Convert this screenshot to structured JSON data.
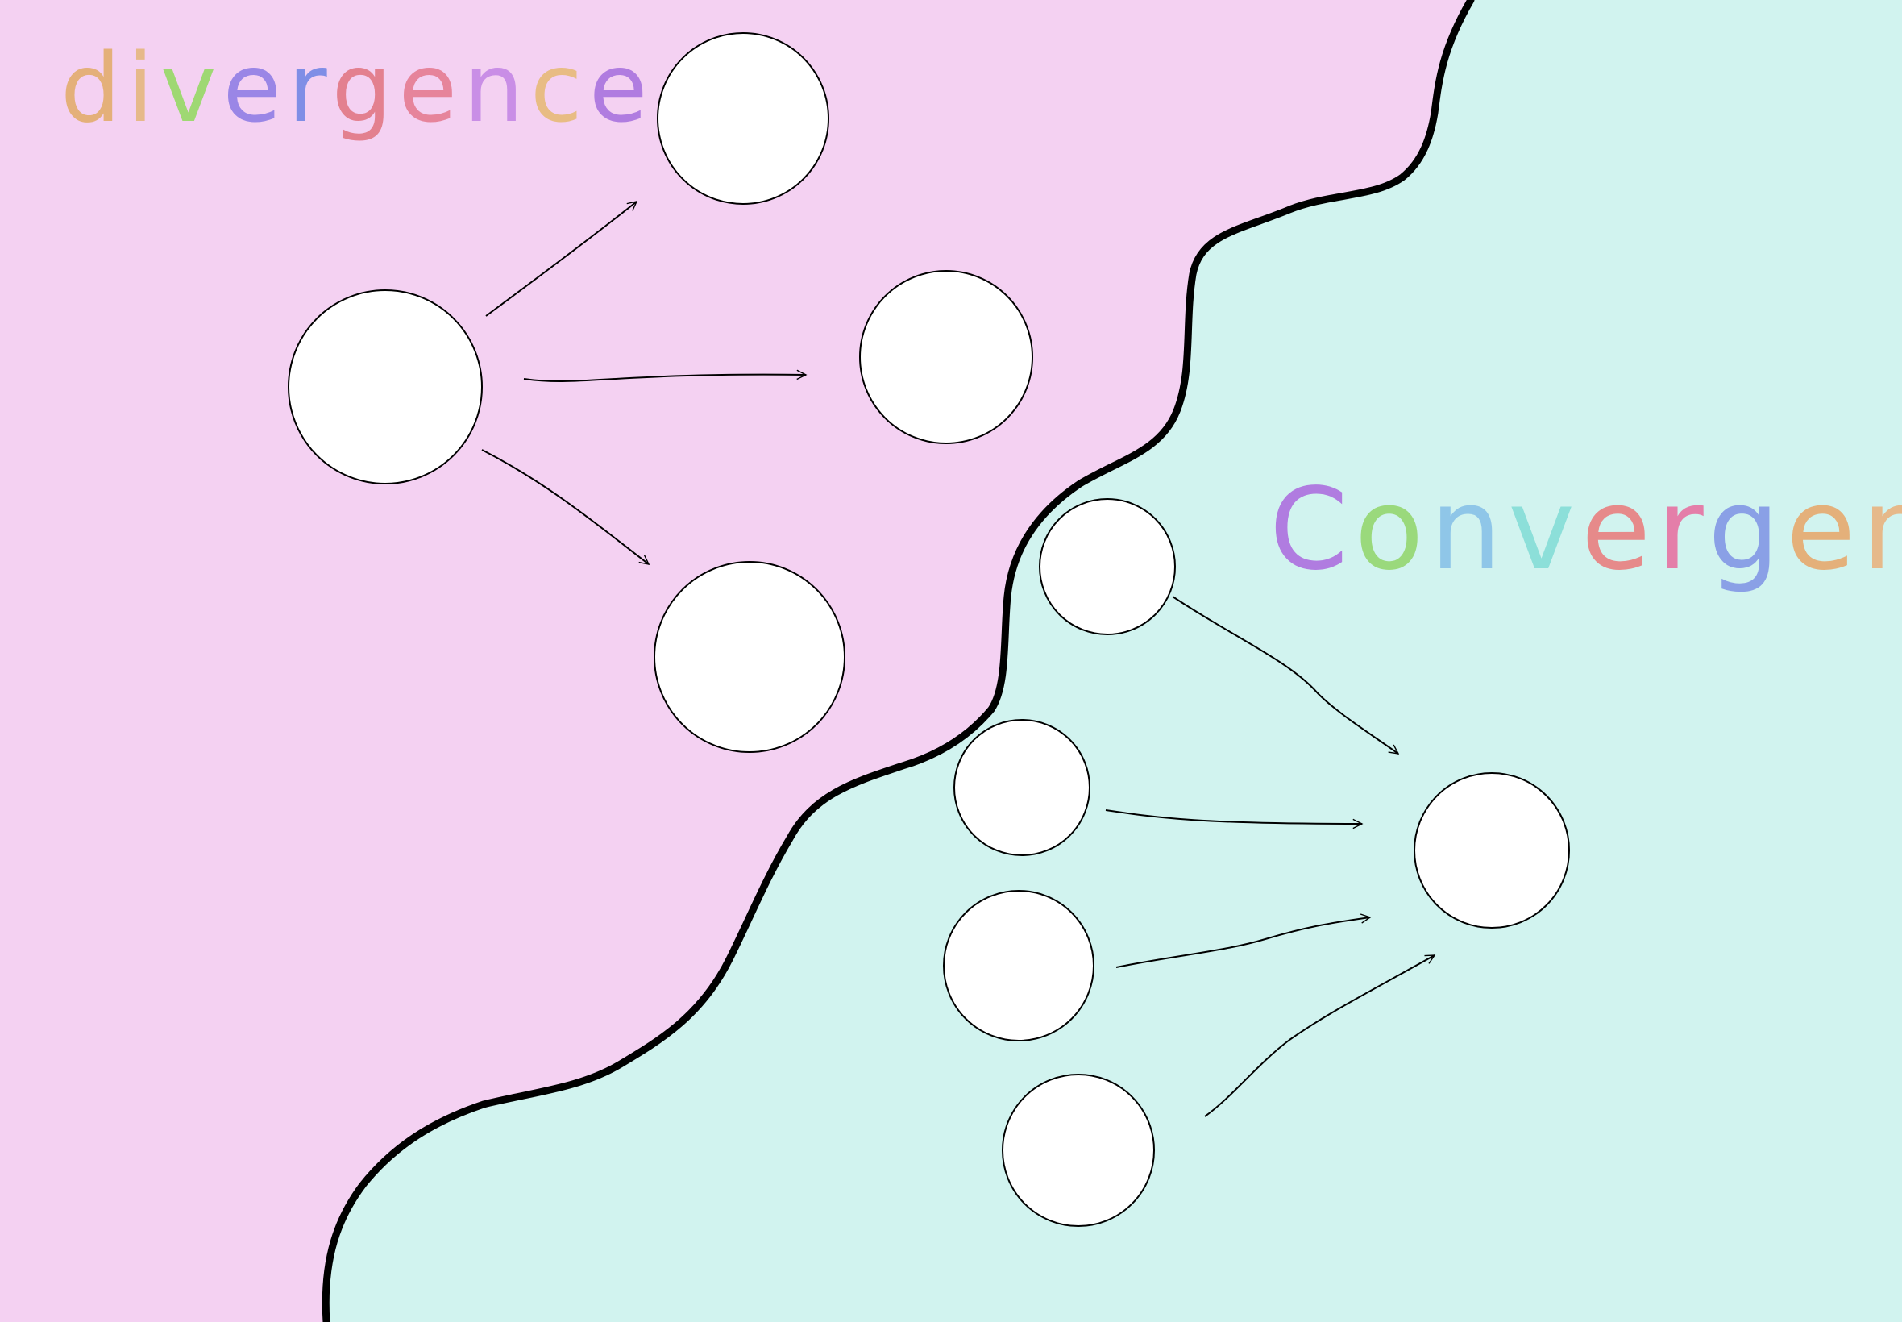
{
  "title_divergence": "divergence",
  "title_convergence": "Convergence",
  "colors": {
    "divergence_region": "#f4d1f2",
    "convergence_region": "#d1f3ef",
    "node_fill": "#ffffff",
    "stroke": "#000000",
    "letter_palette": [
      "#e4b07a",
      "#e6b98a",
      "#9fd873",
      "#9a86e6",
      "#7f8ee6",
      "#e3808f",
      "#e6849b",
      "#c98ee6",
      "#e8bc84",
      "#b07ce0",
      "#9ad97c",
      "#8fc6e8",
      "#8cdfd9",
      "#e68a8a",
      "#e47ea9",
      "#8aa0e6"
    ]
  },
  "divergence": {
    "source": "node-div-source",
    "targets": [
      "node-div-top",
      "node-div-middle",
      "node-div-bottom"
    ]
  },
  "convergence": {
    "sources": [
      "node-conv-1",
      "node-conv-2",
      "node-conv-3",
      "node-conv-4"
    ],
    "target": "node-conv-target"
  }
}
